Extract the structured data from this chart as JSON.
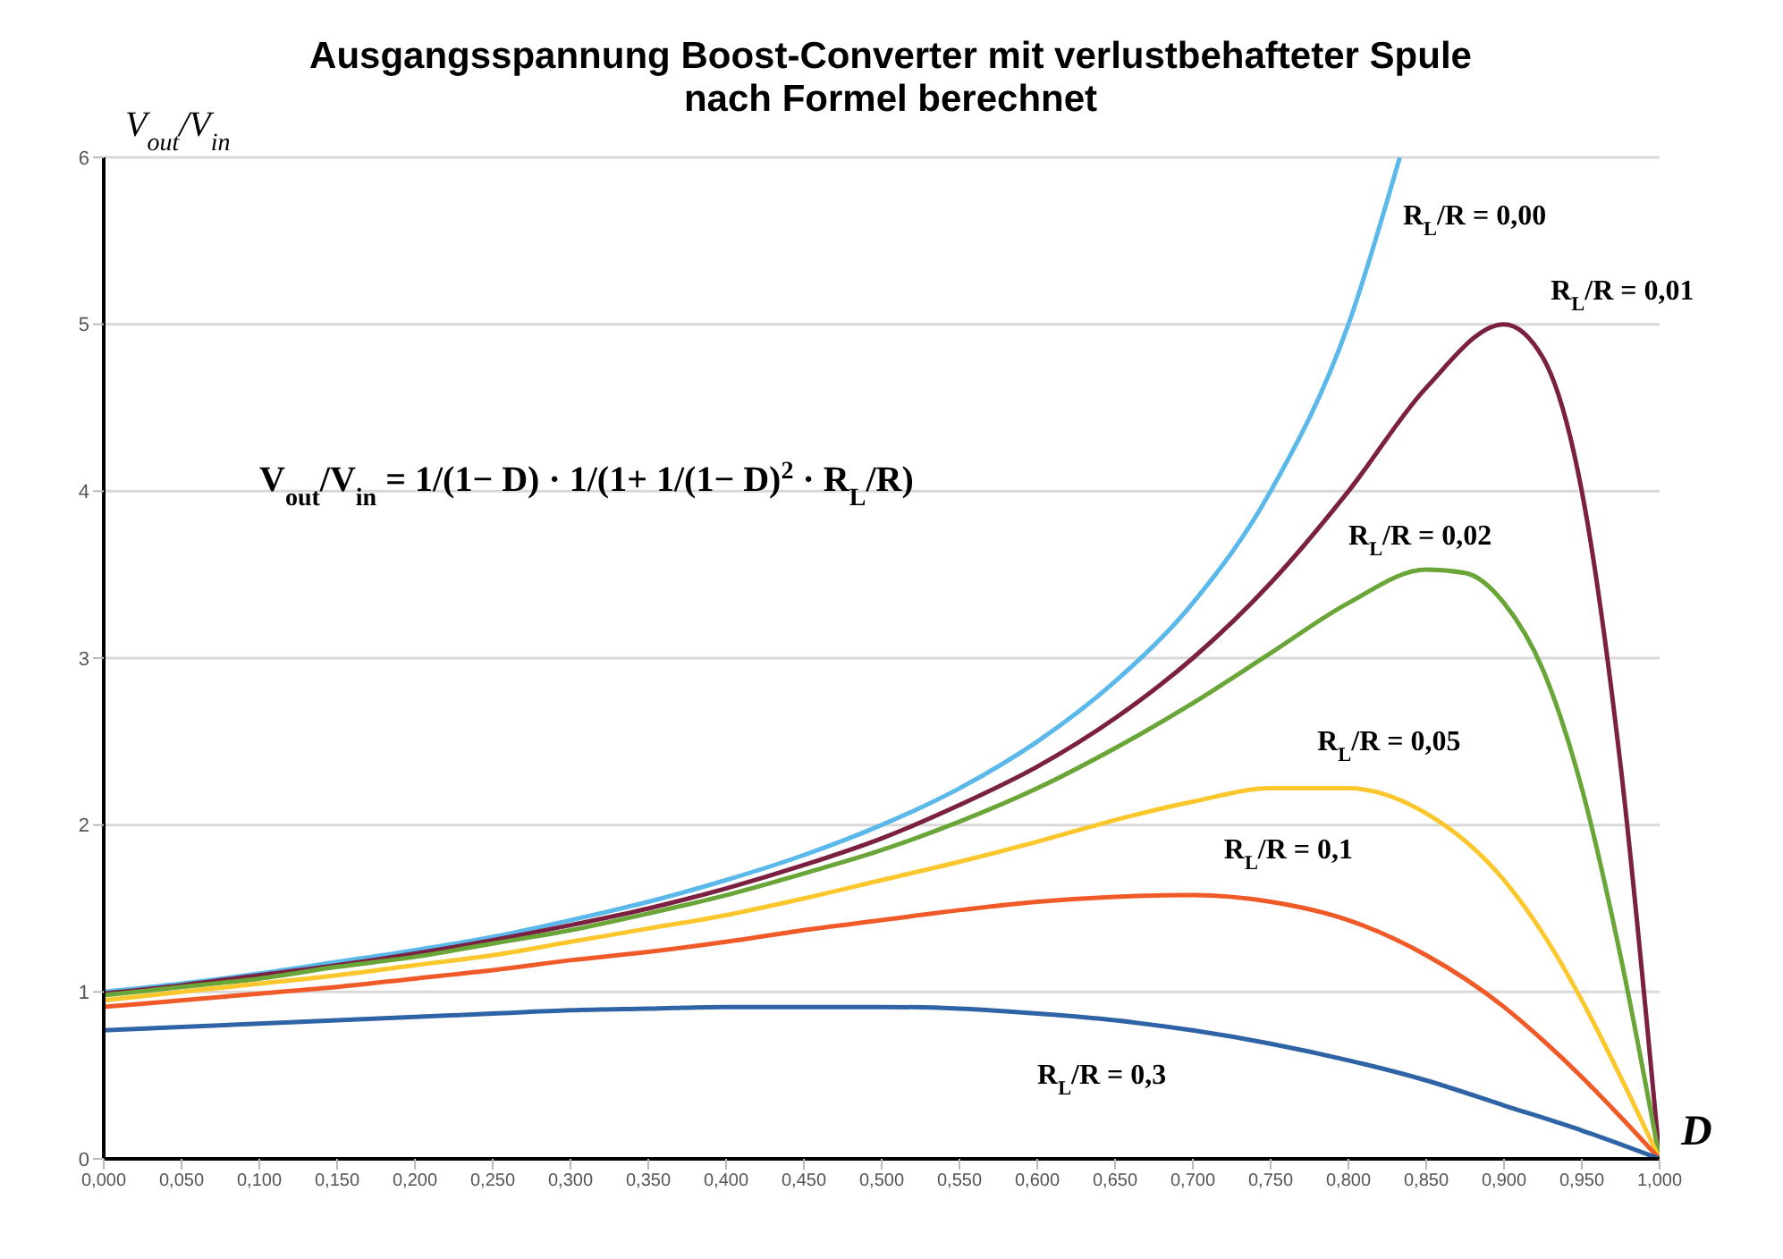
{
  "chart_data": {
    "type": "line",
    "title": "Ausgangsspannung Boost-Converter mit verlustbehafteter Spule\nnach Formel berechnet",
    "xlabel": "D",
    "ylabel": "V$_{out}$/V$_{in}$",
    "annotations": [
      "V$_{out}$/V$_{in}$ = 1/(1− D) · 1/(1+ 1/(1− D)$^{2}$ · R$_{L}$/R)"
    ],
    "xlim": [
      0,
      1
    ],
    "ylim": [
      0,
      6
    ],
    "yticks": [
      0,
      1,
      2,
      3,
      4,
      5,
      6
    ],
    "xticks": [
      {
        "value": 0,
        "label": "0,000"
      },
      {
        "value": 0.05,
        "label": "0,050"
      },
      {
        "value": 0.1,
        "label": "0,100"
      },
      {
        "value": 0.15,
        "label": "0,150"
      },
      {
        "value": 0.2,
        "label": "0,200"
      },
      {
        "value": 0.25,
        "label": "0,250"
      },
      {
        "value": 0.3,
        "label": "0,300"
      },
      {
        "value": 0.35,
        "label": "0,350"
      },
      {
        "value": 0.4,
        "label": "0,400"
      },
      {
        "value": 0.45,
        "label": "0,450"
      },
      {
        "value": 0.5,
        "label": "0,500"
      },
      {
        "value": 0.55,
        "label": "0,550"
      },
      {
        "value": 0.6,
        "label": "0,600"
      },
      {
        "value": 0.65,
        "label": "0,650"
      },
      {
        "value": 0.7,
        "label": "0,700"
      },
      {
        "value": 0.75,
        "label": "0,750"
      },
      {
        "value": 0.8,
        "label": "0,800"
      },
      {
        "value": 0.85,
        "label": "0,850"
      },
      {
        "value": 0.9,
        "label": "0,900"
      },
      {
        "value": 0.95,
        "label": "0,950"
      },
      {
        "value": 1,
        "label": "1,000"
      }
    ],
    "grid": "y",
    "legend": false,
    "marker": "none",
    "line_style": "solid",
    "series": [
      {
        "name": "R$_{L}$/R = 0,00",
        "color": "#5bb8ea",
        "x": [
          0,
          0.05,
          0.1,
          0.15,
          0.2,
          0.25,
          0.3,
          0.35,
          0.4,
          0.45,
          0.5,
          0.55,
          0.6,
          0.65,
          0.7,
          0.75,
          0.8,
          0.833
        ],
        "values": [
          1,
          1.05,
          1.11,
          1.18,
          1.25,
          1.33,
          1.43,
          1.54,
          1.67,
          1.82,
          2,
          2.22,
          2.5,
          2.86,
          3.33,
          4,
          5,
          6
        ]
      },
      {
        "name": "R$_{L}$/R = 0,01",
        "color": "#7b2040",
        "x": [
          0,
          0.05,
          0.1,
          0.15,
          0.2,
          0.25,
          0.3,
          0.35,
          0.4,
          0.45,
          0.5,
          0.55,
          0.6,
          0.65,
          0.7,
          0.75,
          0.8,
          0.85,
          0.9,
          0.925,
          0.95,
          0.975,
          1
        ],
        "values": [
          0.99,
          1.04,
          1.1,
          1.16,
          1.23,
          1.31,
          1.4,
          1.5,
          1.62,
          1.76,
          1.92,
          2.12,
          2.35,
          2.64,
          3,
          3.45,
          4,
          4.62,
          5,
          4.8,
          4,
          2.35,
          0
        ]
      },
      {
        "name": "R$_{L}$/R = 0,02",
        "color": "#6aa538",
        "x": [
          0,
          0.05,
          0.1,
          0.15,
          0.2,
          0.25,
          0.3,
          0.35,
          0.4,
          0.45,
          0.5,
          0.55,
          0.6,
          0.65,
          0.7,
          0.75,
          0.8,
          0.85,
          0.875,
          0.9,
          0.925,
          0.95,
          0.975,
          1
        ],
        "values": [
          0.98,
          1.03,
          1.08,
          1.15,
          1.21,
          1.29,
          1.37,
          1.47,
          1.58,
          1.71,
          1.85,
          2.02,
          2.22,
          2.46,
          2.73,
          3.03,
          3.33,
          3.53,
          3.51,
          3.33,
          2.93,
          2.22,
          1.21,
          0
        ]
      },
      {
        "name": "R$_{L}$/R = 0,05",
        "color": "#fcc72c",
        "x": [
          0,
          0.05,
          0.1,
          0.15,
          0.2,
          0.25,
          0.3,
          0.35,
          0.4,
          0.45,
          0.5,
          0.55,
          0.6,
          0.65,
          0.7,
          0.75,
          0.8,
          0.85,
          0.9,
          0.925,
          0.95,
          0.975,
          1
        ],
        "values": [
          0.95,
          1,
          1.05,
          1.1,
          1.16,
          1.22,
          1.3,
          1.38,
          1.46,
          1.56,
          1.67,
          1.78,
          1.9,
          2.03,
          2.14,
          2.22,
          2.22,
          2.07,
          1.67,
          1.35,
          0.95,
          0.49,
          0
        ]
      },
      {
        "name": "R$_{L}$/R = 0,1",
        "color": "#f05a28",
        "x": [
          0,
          0.05,
          0.1,
          0.15,
          0.2,
          0.25,
          0.3,
          0.35,
          0.4,
          0.45,
          0.5,
          0.55,
          0.6,
          0.65,
          0.7,
          0.75,
          0.8,
          0.85,
          0.9,
          0.925,
          0.95,
          0.975,
          1
        ],
        "values": [
          0.91,
          0.95,
          0.99,
          1.03,
          1.08,
          1.13,
          1.19,
          1.24,
          1.3,
          1.37,
          1.43,
          1.49,
          1.54,
          1.57,
          1.58,
          1.54,
          1.43,
          1.22,
          0.91,
          0.71,
          0.49,
          0.25,
          0
        ]
      },
      {
        "name": "R$_{L}$/R = 0,3",
        "color": "#2e63a6",
        "x": [
          0,
          0.05,
          0.1,
          0.15,
          0.2,
          0.25,
          0.3,
          0.35,
          0.4,
          0.45,
          0.5,
          0.55,
          0.6,
          0.65,
          0.7,
          0.75,
          0.8,
          0.85,
          0.9,
          0.95,
          1
        ],
        "values": [
          0.77,
          0.79,
          0.81,
          0.83,
          0.85,
          0.87,
          0.89,
          0.9,
          0.91,
          0.91,
          0.91,
          0.9,
          0.87,
          0.83,
          0.77,
          0.69,
          0.59,
          0.47,
          0.32,
          0.17,
          0
        ]
      }
    ]
  }
}
